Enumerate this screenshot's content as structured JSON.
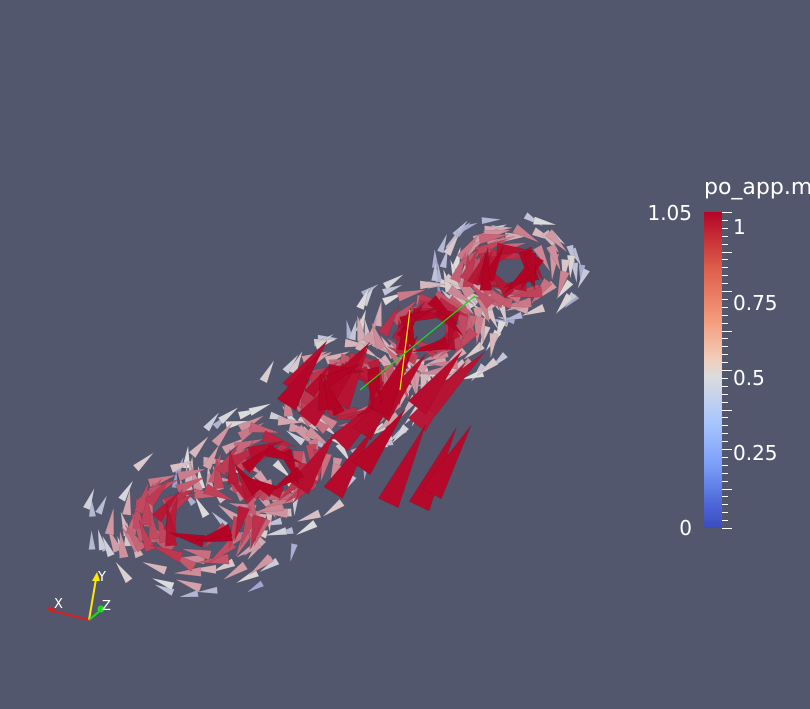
{
  "colors": {
    "background": "#52576e",
    "low": "#3b4cc0",
    "mid": "#dddcdc",
    "high": "#b40426",
    "axis_x": "#d62020",
    "axis_y": "#ffea00",
    "axis_z": "#1fd81f"
  },
  "legend": {
    "title": "po_app.m",
    "range_max": "1.05",
    "range_min": "0",
    "ticks": [
      "1",
      "0.75",
      "0.5",
      "0.25"
    ],
    "tick_values": [
      1,
      0.75,
      0.5,
      0.25
    ],
    "vmin": 0,
    "vmax": 1.05
  },
  "axes": {
    "x_label": "X",
    "y_label": "Y",
    "z_label": "Z"
  }
}
